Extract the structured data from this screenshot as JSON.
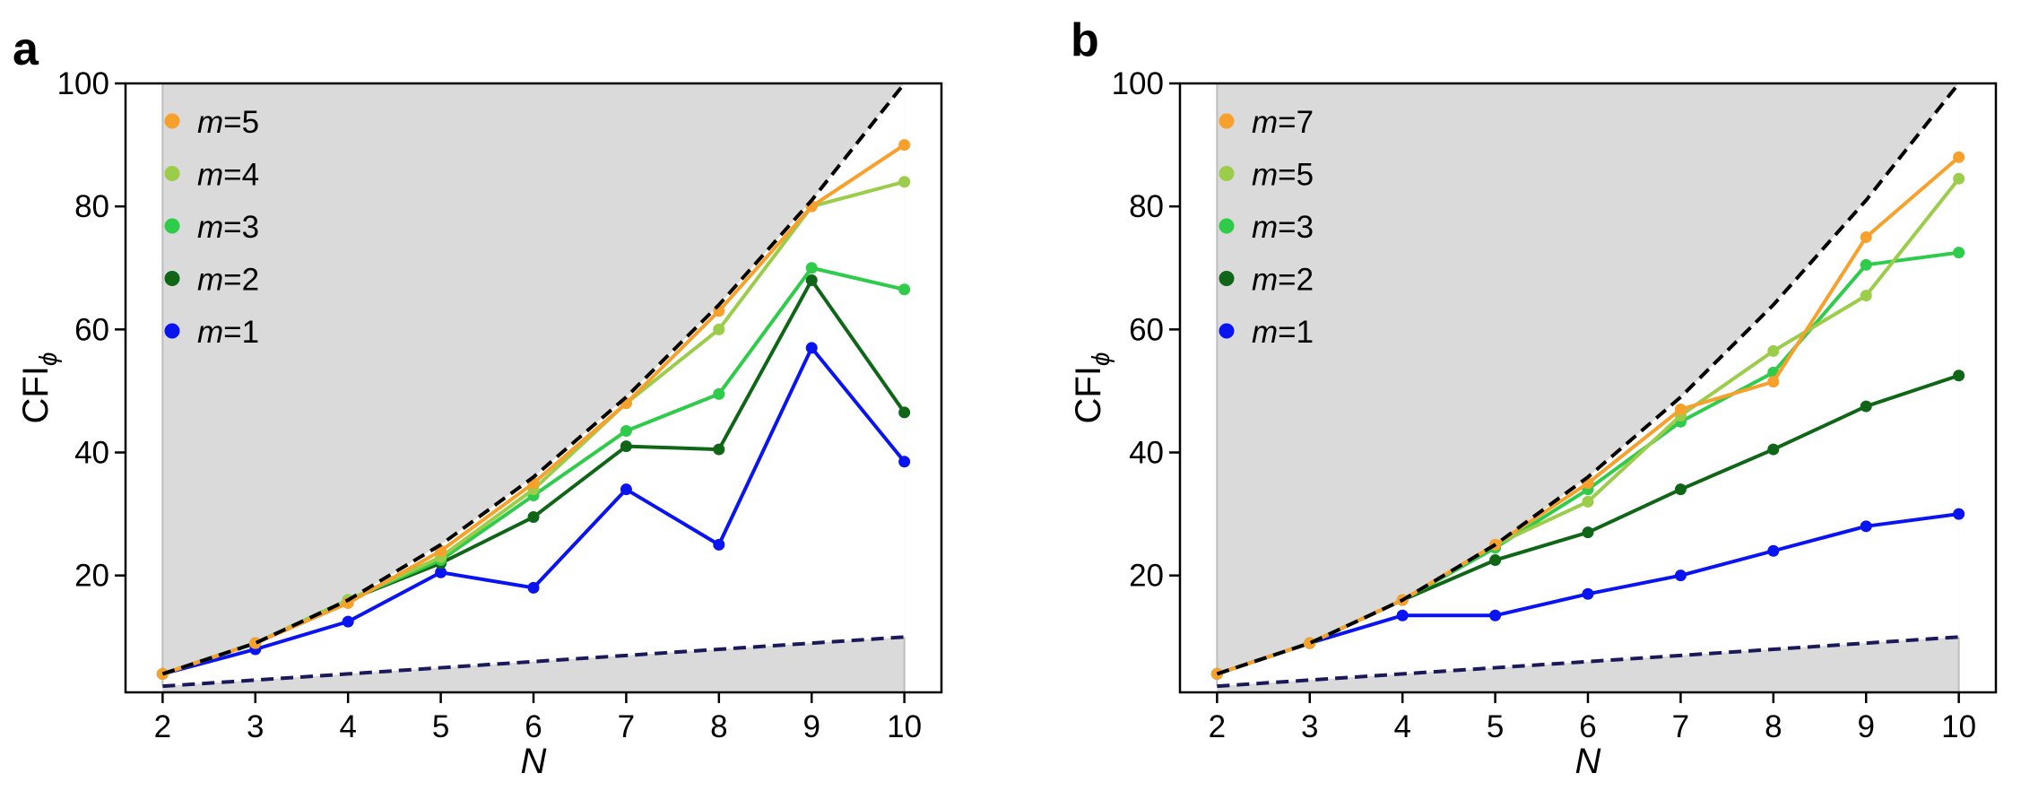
{
  "colors": {
    "m7": "#F7A12C",
    "m5": "#F7A12C",
    "m4": "#9BCC4A",
    "m3": "#2ECC4A",
    "m2": "#0F6616",
    "m1": "#0A14F0",
    "heisenberg": "#000000",
    "sql": "#1A1A5A",
    "shade": "#DADADA"
  },
  "chart_data": [
    {
      "type": "line",
      "panel": "a",
      "xlabel": "N",
      "ylabel": {
        "main": "CFI",
        "sub": "ϕ"
      },
      "xlim": [
        1.6,
        10.4
      ],
      "ylim": [
        1.0,
        100.0
      ],
      "xticks": [
        2,
        3,
        4,
        5,
        6,
        7,
        8,
        9,
        10
      ],
      "xtick_labels": [
        "2",
        "3",
        "4",
        "5",
        "6",
        "7",
        "8",
        "9",
        "10"
      ],
      "yticks": [
        20,
        40,
        60,
        80,
        100
      ],
      "ytick_labels": [
        "20",
        "40",
        "60",
        "80",
        "100"
      ],
      "x": [
        2,
        3,
        4,
        5,
        6,
        7,
        8,
        9,
        10
      ],
      "heisenberg_limit": [
        4,
        9,
        16,
        25,
        36,
        49,
        64,
        81,
        100
      ],
      "standard_quantum_limit": [
        2,
        3,
        4,
        5,
        6,
        7,
        8,
        9,
        10
      ],
      "legend_position": "top-left",
      "series": [
        {
          "name": "m=5",
          "m_label": "m",
          "m_value": "=5",
          "color_key": "m5",
          "values": [
            4,
            9,
            15.5,
            24,
            35,
            48,
            63,
            80,
            90
          ]
        },
        {
          "name": "m=4",
          "m_label": "m",
          "m_value": "=4",
          "color_key": "m4",
          "values": [
            4,
            9,
            16,
            23,
            34,
            48,
            60,
            80,
            84
          ]
        },
        {
          "name": "m=3",
          "m_label": "m",
          "m_value": "=3",
          "color_key": "m3",
          "values": [
            4,
            9,
            16,
            22.5,
            33,
            43.5,
            49.5,
            70,
            66.5
          ]
        },
        {
          "name": "m=2",
          "m_label": "m",
          "m_value": "=2",
          "color_key": "m2",
          "values": [
            4,
            9,
            16,
            22,
            29.5,
            41,
            40.5,
            68,
            46.5
          ]
        },
        {
          "name": "m=1",
          "m_label": "m",
          "m_value": "=1",
          "color_key": "m1",
          "values": [
            4,
            8,
            12.5,
            20.5,
            18,
            34,
            25,
            57,
            38.5
          ]
        }
      ]
    },
    {
      "type": "line",
      "panel": "b",
      "xlabel": "N",
      "ylabel": {
        "main": "CFI",
        "sub": "ϕ"
      },
      "xlim": [
        1.6,
        10.4
      ],
      "ylim": [
        1.0,
        100.0
      ],
      "xticks": [
        2,
        3,
        4,
        5,
        6,
        7,
        8,
        9,
        10
      ],
      "xtick_labels": [
        "2",
        "3",
        "4",
        "5",
        "6",
        "7",
        "8",
        "9",
        "10"
      ],
      "yticks": [
        20,
        40,
        60,
        80,
        100
      ],
      "ytick_labels": [
        "20",
        "40",
        "60",
        "80",
        "100"
      ],
      "x": [
        2,
        3,
        4,
        5,
        6,
        7,
        8,
        9,
        10
      ],
      "heisenberg_limit": [
        4,
        9,
        16,
        25,
        36,
        49,
        64,
        81,
        100
      ],
      "standard_quantum_limit": [
        2,
        3,
        4,
        5,
        6,
        7,
        8,
        9,
        10
      ],
      "legend_position": "top-left",
      "series": [
        {
          "name": "m=7",
          "m_label": "m",
          "m_value": "=7",
          "color_key": "m7",
          "values": [
            4,
            9,
            16,
            25,
            35,
            47,
            51.5,
            75,
            88
          ]
        },
        {
          "name": "m=5",
          "m_label": "m",
          "m_value": "=5",
          "color_key": "m4",
          "values": [
            4,
            9,
            16,
            25,
            32,
            46,
            56.5,
            65.5,
            84.5
          ]
        },
        {
          "name": "m=3",
          "m_label": "m",
          "m_value": "=3",
          "color_key": "m3",
          "values": [
            4,
            9,
            16,
            24.5,
            34,
            45,
            53,
            70.5,
            72.5
          ]
        },
        {
          "name": "m=2",
          "m_label": "m",
          "m_value": "=2",
          "color_key": "m2",
          "values": [
            4,
            9,
            16,
            22.5,
            27,
            34,
            40.5,
            47.5,
            52.5
          ]
        },
        {
          "name": "m=1",
          "m_label": "m",
          "m_value": "=1",
          "color_key": "m1",
          "values": [
            4,
            9,
            13.5,
            13.5,
            17,
            20,
            24,
            28,
            30
          ]
        }
      ]
    }
  ]
}
